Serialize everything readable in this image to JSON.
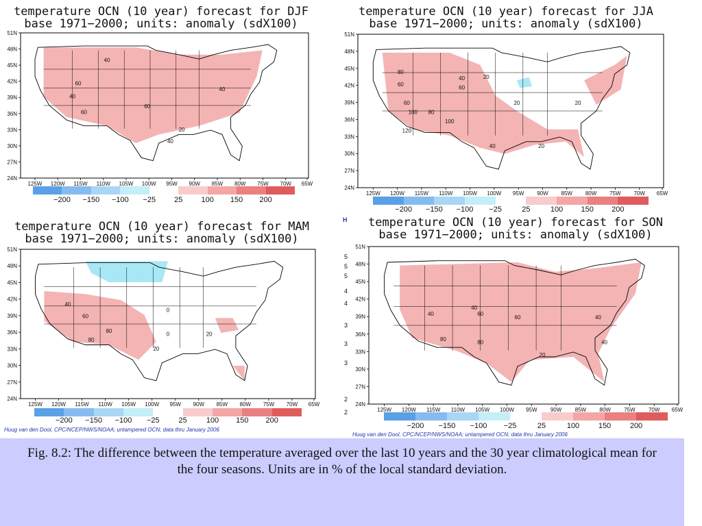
{
  "colors": {
    "pink": "#f4b4b4",
    "cyan": "#a8e8f4",
    "colorbar": [
      "#5aa0e6",
      "#86bbf0",
      "#a8d6f4",
      "#c4eef8",
      "#ffffff",
      "#f8cccc",
      "#f4a6a6",
      "#ea8080",
      "#e05c5c"
    ],
    "caption_bg": "#ccccff"
  },
  "lat_labels": [
    "51N",
    "48N",
    "45N",
    "42N",
    "39N",
    "36N",
    "33N",
    "30N",
    "27N",
    "24N"
  ],
  "lon_labels": [
    "125W",
    "120W",
    "115W",
    "110W",
    "105W",
    "100W",
    "95W",
    "90W",
    "85W",
    "80W",
    "75W",
    "70W",
    "65W"
  ],
  "colorbar_labels": [
    "−200",
    "−150",
    "−100",
    "−25",
    "25",
    "100",
    "150",
    "200"
  ],
  "credit": "Huug van den Dool, CPC/NCEP/NWS/NOAA; untampered OCN; data thru January 2006",
  "panels": [
    {
      "id": "djf",
      "title_line1": "temperature OCN (10 year) forecast for DJF",
      "title_line2": "base 1971−2000; units: anomaly (sdX100)",
      "contour_labels": [
        "40",
        "60",
        "40",
        "60",
        "60",
        "40",
        "20",
        "40"
      ],
      "has_credit": false
    },
    {
      "id": "jja",
      "title_line1": "temperature OCN (10 year) forecast for JJA",
      "title_line2": "base 1971−2000; units: anomaly (sdX100)",
      "contour_labels": [
        "80",
        "60",
        "40",
        "60",
        "20",
        "60",
        "80",
        "100",
        "100",
        "120",
        "40",
        "20",
        "20",
        "20"
      ],
      "has_credit": false
    },
    {
      "id": "mam",
      "title_line1": "temperature OCN (10 year) forecast for MAM",
      "title_line2": "base 1971−2000; units: anomaly (sdX100)",
      "contour_labels": [
        "40",
        "60",
        "80",
        "80",
        "20",
        "0",
        "20",
        "0"
      ],
      "has_credit": true
    },
    {
      "id": "son",
      "title_line1": "temperature OCN (10 year) forecast for SON",
      "title_line2": "base 1971−2000; units: anomaly (sdX100)",
      "contour_labels": [
        "40",
        "40",
        "60",
        "60",
        "40",
        "80",
        "80",
        "40",
        "20"
      ],
      "has_credit": true
    }
  ],
  "stray_marks": [
    "H",
    "5",
    "5",
    "5",
    "4",
    "4",
    "3",
    "3",
    "3",
    "2",
    "2"
  ],
  "caption": "Fig. 8.2: The difference between the temperature averaged over the last 10 years and the 30 year climatological mean for the four seasons. Units are in % of the local standard deviation."
}
